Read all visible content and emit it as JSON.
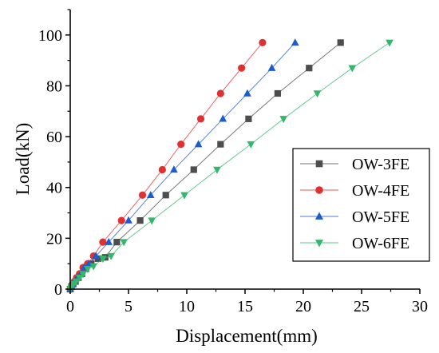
{
  "chart_data": {
    "type": "line",
    "xlabel": "Displacement(mm)",
    "ylabel": "Load(kN)",
    "xlim": [
      0,
      30
    ],
    "ylim": [
      0,
      110
    ],
    "x_ticks": [
      "0",
      "5",
      "10",
      "15",
      "20",
      "25",
      "30"
    ],
    "y_ticks": [
      "0",
      "20",
      "40",
      "60",
      "80",
      "100"
    ],
    "x_tick_values": [
      0,
      5,
      10,
      15,
      20,
      25,
      30
    ],
    "y_tick_values": [
      0,
      20,
      40,
      60,
      80,
      100
    ],
    "grid": false,
    "legend_position": "right",
    "series": [
      {
        "name": "OW-3FE",
        "color": "#4d4d4d",
        "marker": "square",
        "x": [
          0,
          0.1,
          0.25,
          0.45,
          0.7,
          1.0,
          1.35,
          1.8,
          2.4,
          3.0,
          4.0,
          6.0,
          8.2,
          10.6,
          12.9,
          15.3,
          17.8,
          20.5,
          23.2
        ],
        "y": [
          0,
          1,
          2,
          3,
          4.5,
          6,
          8,
          10,
          12,
          12.5,
          18.5,
          27,
          37,
          47,
          57,
          67,
          77,
          87,
          97
        ]
      },
      {
        "name": "OW-4FE",
        "color": "#e03131",
        "marker": "circle",
        "x": [
          0,
          0.1,
          0.2,
          0.35,
          0.55,
          0.8,
          1.1,
          1.5,
          2.0,
          2.8,
          4.4,
          6.2,
          7.9,
          9.5,
          11.2,
          12.9,
          14.7,
          16.5
        ],
        "y": [
          0,
          1,
          2,
          3,
          4.5,
          6,
          8.5,
          10,
          13,
          18.5,
          27,
          37,
          47,
          57,
          67,
          77,
          87,
          97
        ]
      },
      {
        "name": "OW-5FE",
        "color": "#1c5ccf",
        "marker": "triangle-up",
        "x": [
          0,
          0.1,
          0.2,
          0.4,
          0.6,
          0.9,
          1.2,
          1.6,
          2.2,
          3.3,
          5.0,
          6.9,
          8.9,
          11.0,
          13.1,
          15.2,
          17.3,
          19.3
        ],
        "y": [
          0,
          1,
          2,
          3,
          4.5,
          6,
          8.5,
          10,
          13,
          18.5,
          27,
          37,
          47,
          57,
          67,
          77,
          87,
          97
        ]
      },
      {
        "name": "OW-6FE",
        "color": "#33b86b",
        "marker": "triangle-down",
        "x": [
          0,
          0.1,
          0.3,
          0.5,
          0.8,
          1.1,
          1.5,
          2.0,
          2.8,
          3.5,
          4.6,
          7.0,
          9.8,
          12.6,
          15.5,
          18.3,
          21.2,
          24.2,
          27.4
        ],
        "y": [
          0,
          1,
          2,
          3,
          4.5,
          6,
          8,
          9,
          12,
          13,
          18.5,
          27,
          37,
          47,
          57,
          67,
          77,
          87,
          97
        ]
      }
    ]
  }
}
